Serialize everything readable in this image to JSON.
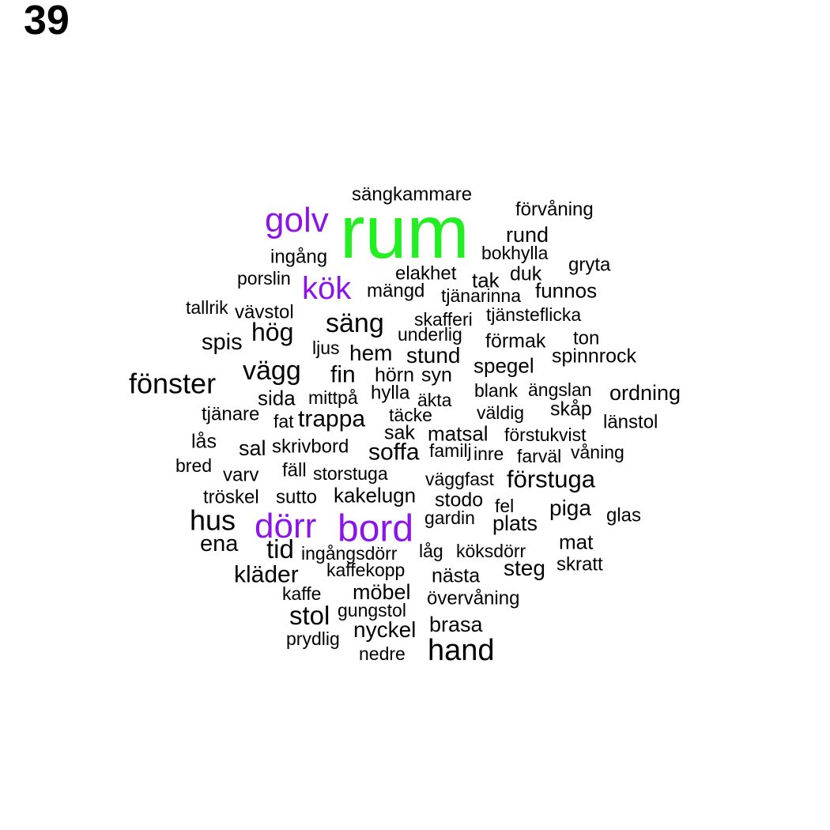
{
  "panel_number": "39",
  "colors": {
    "primary": "#22ee22",
    "secondary": "#8a15e6",
    "default": "#000000"
  },
  "words": [
    {
      "text": "rum",
      "tier": "primary"
    },
    {
      "text": "golv",
      "tier": "secondary"
    },
    {
      "text": "kök",
      "tier": "secondary"
    },
    {
      "text": "dörr",
      "tier": "secondary"
    },
    {
      "text": "bord",
      "tier": "secondary"
    },
    {
      "text": "sängkammare",
      "tier": "default"
    },
    {
      "text": "förvåning",
      "tier": "default"
    },
    {
      "text": "rund",
      "tier": "default"
    },
    {
      "text": "bokhylla",
      "tier": "default"
    },
    {
      "text": "ingång",
      "tier": "default"
    },
    {
      "text": "gryta",
      "tier": "default"
    },
    {
      "text": "porslin",
      "tier": "default"
    },
    {
      "text": "elakhet",
      "tier": "default"
    },
    {
      "text": "tak",
      "tier": "default"
    },
    {
      "text": "duk",
      "tier": "default"
    },
    {
      "text": "mängd",
      "tier": "default"
    },
    {
      "text": "tjänarinna",
      "tier": "default"
    },
    {
      "text": "funnos",
      "tier": "default"
    },
    {
      "text": "tallrik",
      "tier": "default"
    },
    {
      "text": "vävstol",
      "tier": "default"
    },
    {
      "text": "tjänsteflicka",
      "tier": "default"
    },
    {
      "text": "skafferi",
      "tier": "default"
    },
    {
      "text": "säng",
      "tier": "default"
    },
    {
      "text": "hög",
      "tier": "default"
    },
    {
      "text": "underlig",
      "tier": "default"
    },
    {
      "text": "ton",
      "tier": "default"
    },
    {
      "text": "förmak",
      "tier": "default"
    },
    {
      "text": "spis",
      "tier": "default"
    },
    {
      "text": "ljus",
      "tier": "default"
    },
    {
      "text": "hem",
      "tier": "default"
    },
    {
      "text": "stund",
      "tier": "default"
    },
    {
      "text": "spinnrock",
      "tier": "default"
    },
    {
      "text": "spegel",
      "tier": "default"
    },
    {
      "text": "vägg",
      "tier": "default"
    },
    {
      "text": "fin",
      "tier": "default"
    },
    {
      "text": "hörn",
      "tier": "default"
    },
    {
      "text": "syn",
      "tier": "default"
    },
    {
      "text": "fönster",
      "tier": "default"
    },
    {
      "text": "blank",
      "tier": "default"
    },
    {
      "text": "ängslan",
      "tier": "default"
    },
    {
      "text": "ordning",
      "tier": "default"
    },
    {
      "text": "sida",
      "tier": "default"
    },
    {
      "text": "mittpå",
      "tier": "default"
    },
    {
      "text": "hylla",
      "tier": "default"
    },
    {
      "text": "äkta",
      "tier": "default"
    },
    {
      "text": "skåp",
      "tier": "default"
    },
    {
      "text": "tjänare",
      "tier": "default"
    },
    {
      "text": "fat",
      "tier": "default"
    },
    {
      "text": "trappa",
      "tier": "default"
    },
    {
      "text": "täcke",
      "tier": "default"
    },
    {
      "text": "väldig",
      "tier": "default"
    },
    {
      "text": "länstol",
      "tier": "default"
    },
    {
      "text": "sak",
      "tier": "default"
    },
    {
      "text": "matsal",
      "tier": "default"
    },
    {
      "text": "förstukvist",
      "tier": "default"
    },
    {
      "text": "lås",
      "tier": "default"
    },
    {
      "text": "sal",
      "tier": "default"
    },
    {
      "text": "skrivbord",
      "tier": "default"
    },
    {
      "text": "soffa",
      "tier": "default"
    },
    {
      "text": "familj",
      "tier": "default"
    },
    {
      "text": "inre",
      "tier": "default"
    },
    {
      "text": "farväl",
      "tier": "default"
    },
    {
      "text": "våning",
      "tier": "default"
    },
    {
      "text": "bred",
      "tier": "default"
    },
    {
      "text": "varv",
      "tier": "default"
    },
    {
      "text": "fäll",
      "tier": "default"
    },
    {
      "text": "storstuga",
      "tier": "default"
    },
    {
      "text": "väggfast",
      "tier": "default"
    },
    {
      "text": "förstuga",
      "tier": "default"
    },
    {
      "text": "tröskel",
      "tier": "default"
    },
    {
      "text": "sutto",
      "tier": "default"
    },
    {
      "text": "kakelugn",
      "tier": "default"
    },
    {
      "text": "stodo",
      "tier": "default"
    },
    {
      "text": "fel",
      "tier": "default"
    },
    {
      "text": "piga",
      "tier": "default"
    },
    {
      "text": "glas",
      "tier": "default"
    },
    {
      "text": "hus",
      "tier": "default"
    },
    {
      "text": "gardin",
      "tier": "default"
    },
    {
      "text": "plats",
      "tier": "default"
    },
    {
      "text": "ena",
      "tier": "default"
    },
    {
      "text": "tid",
      "tier": "default"
    },
    {
      "text": "mat",
      "tier": "default"
    },
    {
      "text": "ingångsdörr",
      "tier": "default"
    },
    {
      "text": "låg",
      "tier": "default"
    },
    {
      "text": "köksdörr",
      "tier": "default"
    },
    {
      "text": "skratt",
      "tier": "default"
    },
    {
      "text": "steg",
      "tier": "default"
    },
    {
      "text": "kläder",
      "tier": "default"
    },
    {
      "text": "kaffekopp",
      "tier": "default"
    },
    {
      "text": "nästa",
      "tier": "default"
    },
    {
      "text": "kaffe",
      "tier": "default"
    },
    {
      "text": "möbel",
      "tier": "default"
    },
    {
      "text": "övervåning",
      "tier": "default"
    },
    {
      "text": "stol",
      "tier": "default"
    },
    {
      "text": "gungstol",
      "tier": "default"
    },
    {
      "text": "brasa",
      "tier": "default"
    },
    {
      "text": "nyckel",
      "tier": "default"
    },
    {
      "text": "prydlig",
      "tier": "default"
    },
    {
      "text": "hand",
      "tier": "default"
    },
    {
      "text": "nedre",
      "tier": "default"
    }
  ]
}
